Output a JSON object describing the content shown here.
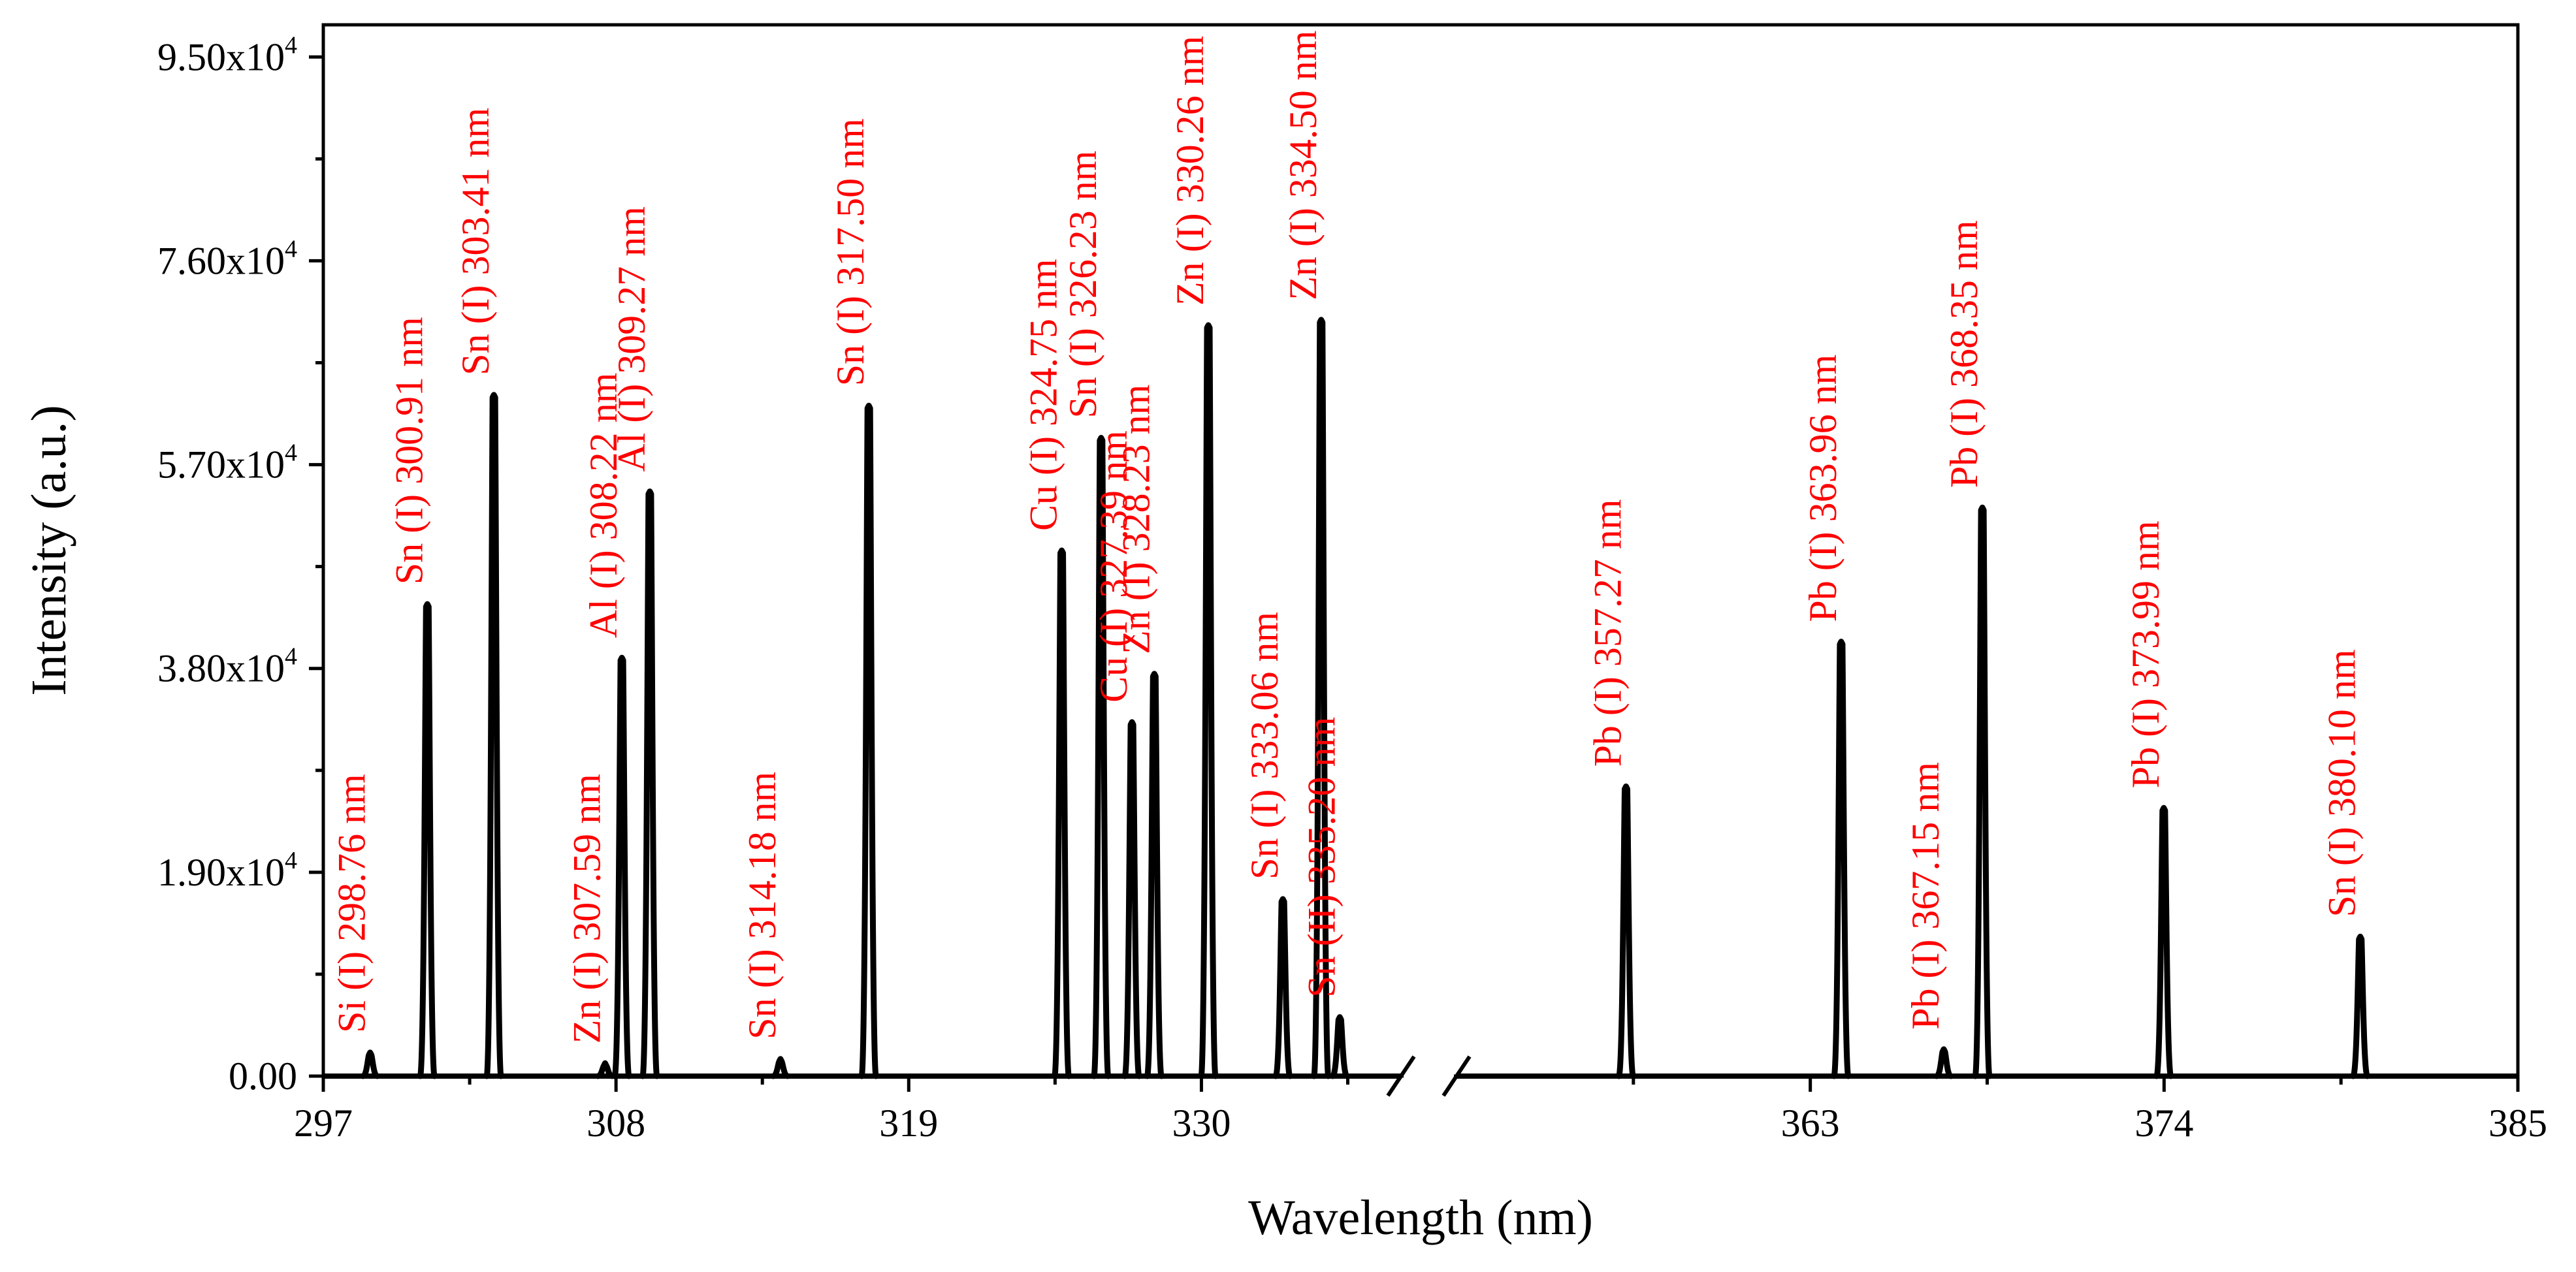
{
  "chart_data": {
    "type": "line",
    "title": "",
    "xlabel": "Wavelength (nm)",
    "ylabel": "Intensity (a.u.)",
    "ylim": [
      0,
      98000
    ],
    "x_axis_break": [
      337.5,
      352
    ],
    "x_ticks": [
      "297",
      "308",
      "319",
      "330",
      "363",
      "374",
      "385"
    ],
    "y_ticks": [
      "0.00",
      "1.90x10",
      "3.80x10",
      "5.70x10",
      "7.60x10",
      "9.50x10"
    ],
    "y_tick_exponent": "4",
    "y_tick_values": [
      0,
      19000,
      38000,
      57000,
      76000,
      95000
    ],
    "peaks": [
      {
        "x": 298.76,
        "y": 2200
      },
      {
        "x": 300.91,
        "y": 44000
      },
      {
        "x": 303.41,
        "y": 63500
      },
      {
        "x": 307.59,
        "y": 1200
      },
      {
        "x": 308.22,
        "y": 39000
      },
      {
        "x": 309.27,
        "y": 54500
      },
      {
        "x": 314.18,
        "y": 1600
      },
      {
        "x": 317.5,
        "y": 62500
      },
      {
        "x": 324.75,
        "y": 49000
      },
      {
        "x": 326.23,
        "y": 59500
      },
      {
        "x": 327.39,
        "y": 33000
      },
      {
        "x": 328.23,
        "y": 37500
      },
      {
        "x": 330.26,
        "y": 70000
      },
      {
        "x": 333.06,
        "y": 16500
      },
      {
        "x": 334.5,
        "y": 70500
      },
      {
        "x": 335.2,
        "y": 5500
      },
      {
        "x": 357.27,
        "y": 27000
      },
      {
        "x": 363.96,
        "y": 40500
      },
      {
        "x": 367.15,
        "y": 2500
      },
      {
        "x": 368.35,
        "y": 53000
      },
      {
        "x": 373.99,
        "y": 25000
      },
      {
        "x": 380.1,
        "y": 13000
      }
    ],
    "annotations": [
      {
        "label": "Si (I) 298.76 nm",
        "x": 298.76,
        "y": 2200
      },
      {
        "label": "Sn (I) 300.91 nm",
        "x": 300.91,
        "y": 44000
      },
      {
        "label": "Sn (I) 303.41 nm",
        "x": 303.41,
        "y": 63500
      },
      {
        "label": "Zn (I) 307.59 nm",
        "x": 307.59,
        "y": 1200
      },
      {
        "label": "Al (I) 308.22 nm",
        "x": 308.22,
        "y": 39000
      },
      {
        "label": "Al (I) 309.27 nm",
        "x": 309.27,
        "y": 54500
      },
      {
        "label": "Sn (I) 314.18 nm",
        "x": 314.18,
        "y": 1600
      },
      {
        "label": "Sn (I) 317.50 nm",
        "x": 317.5,
        "y": 62500
      },
      {
        "label": "Cu (I) 324.75 nm",
        "x": 324.75,
        "y": 49000
      },
      {
        "label": "Sn (I) 326.23 nm",
        "x": 326.23,
        "y": 59500
      },
      {
        "label": "Cu (I) 327.39 nm",
        "x": 327.39,
        "y": 33000
      },
      {
        "label": "Zn (I) 328.23 nm",
        "x": 328.23,
        "y": 37500
      },
      {
        "label": "Zn (I) 330.26 nm",
        "x": 330.26,
        "y": 70000
      },
      {
        "label": "Sn (I) 333.06 nm",
        "x": 333.06,
        "y": 16500
      },
      {
        "label": "Zn (I) 334.50 nm",
        "x": 334.5,
        "y": 70500
      },
      {
        "label": "Sn (II) 335.20 nm",
        "x": 335.2,
        "y": 5500
      },
      {
        "label": "Pb (I) 357.27 nm",
        "x": 357.27,
        "y": 27000
      },
      {
        "label": "Pb (I) 363.96 nm",
        "x": 363.96,
        "y": 40500
      },
      {
        "label": "Pb (I) 367.15 nm",
        "x": 367.15,
        "y": 2500
      },
      {
        "label": "Pb (I) 368.35 nm",
        "x": 368.35,
        "y": 53000
      },
      {
        "label": "Pb (I) 373.99 nm",
        "x": 373.99,
        "y": 25000
      },
      {
        "label": "Sn (I) 380.10 nm",
        "x": 380.1,
        "y": 13000
      }
    ]
  }
}
